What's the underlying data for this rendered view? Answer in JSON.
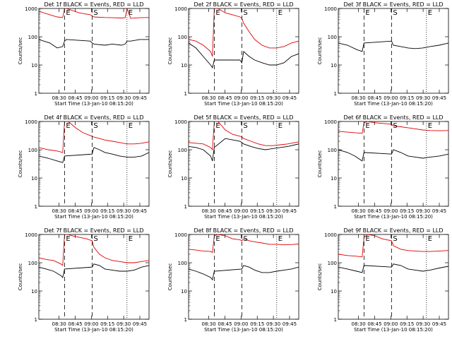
{
  "colors": {
    "events": "#000000",
    "lld": "#e00000",
    "axis": "#000000"
  },
  "chart_data": [
    {
      "type": "line",
      "title": "Det 1f BLACK = Events, RED = LLD",
      "xlabel": "Start Time (13-Jan-10 08:15:20)",
      "ylabel": "Counts/sec",
      "x_ticks": [
        "08:30",
        "08:45",
        "09:00",
        "09:15",
        "09:30",
        "09:45"
      ],
      "y_ticks": [
        "1",
        "10",
        "100",
        "1000"
      ],
      "y_scale": "log",
      "ylim": [
        1,
        1000
      ],
      "markers": [
        {
          "label": "E",
          "style": "dashed"
        },
        {
          "label": "S",
          "style": "dashed"
        },
        {
          "label": "E",
          "style": "dotted"
        }
      ],
      "series": [
        {
          "name": "Events",
          "color": "#000000",
          "x": [
            0,
            6,
            10,
            13,
            14,
            15,
            28,
            29,
            30,
            36,
            40,
            45,
            47,
            48,
            50,
            55,
            60
          ],
          "y": [
            80,
            60,
            40,
            45,
            70,
            80,
            70,
            60,
            55,
            50,
            55,
            50,
            55,
            70,
            70,
            80,
            80
          ]
        },
        {
          "name": "LLD",
          "color": "#e00000",
          "x": [
            0,
            6,
            10,
            13,
            14,
            15,
            22,
            28,
            29,
            30,
            36,
            40,
            45,
            47,
            48,
            50,
            55,
            60
          ],
          "y": [
            800,
            600,
            500,
            480,
            1000,
            1000,
            700,
            600,
            550,
            500,
            480,
            470,
            460,
            470,
            1000,
            450,
            470,
            480
          ]
        }
      ]
    },
    {
      "type": "line",
      "title": "Det 2f BLACK = Events, RED = LLD",
      "xlabel": "Start Time (13-Jan-10 08:15:20)",
      "ylabel": "Counts/sec",
      "x_ticks": [
        "08:30",
        "08:45",
        "09:00",
        "09:15",
        "09:30",
        "09:45"
      ],
      "y_ticks": [
        "1",
        "10",
        "100",
        "1000"
      ],
      "y_scale": "log",
      "ylim": [
        1,
        1000
      ],
      "markers": [
        {
          "label": "E",
          "style": "dashed"
        },
        {
          "label": "S",
          "style": "dashed"
        },
        {
          "label": "E",
          "style": "dotted"
        }
      ],
      "series": [
        {
          "name": "Events",
          "color": "#000000",
          "x": [
            0,
            4,
            8,
            12,
            13,
            14,
            28,
            29,
            30,
            33,
            36,
            40,
            44,
            48,
            52,
            56,
            60
          ],
          "y": [
            60,
            40,
            20,
            10,
            8,
            15,
            15,
            12,
            30,
            20,
            15,
            12,
            10,
            10,
            12,
            20,
            25
          ]
        },
        {
          "name": "LLD",
          "color": "#e00000",
          "x": [
            0,
            4,
            8,
            12,
            13,
            14,
            16,
            20,
            24,
            28,
            29,
            30,
            33,
            36,
            40,
            44,
            48,
            52,
            56,
            60
          ],
          "y": [
            80,
            70,
            50,
            30,
            20,
            1000,
            1000,
            700,
            600,
            500,
            450,
            300,
            150,
            80,
            50,
            40,
            40,
            45,
            60,
            70
          ]
        }
      ]
    },
    {
      "type": "line",
      "title": "Det 3f BLACK = Events, RED = LLD",
      "xlabel": "Start Time (13-Jan-10 08:15:20)",
      "ylabel": "Counts/sec",
      "x_ticks": [
        "08:30",
        "08:45",
        "09:00",
        "09:15",
        "09:30",
        "09:45"
      ],
      "y_ticks": [
        "1",
        "10",
        "100",
        "1000"
      ],
      "y_scale": "log",
      "ylim": [
        1,
        1000
      ],
      "markers": [
        {
          "label": "E",
          "style": "dashed"
        },
        {
          "label": "S",
          "style": "dashed"
        },
        {
          "label": "E",
          "style": "dotted"
        }
      ],
      "series": [
        {
          "name": "Events",
          "color": "#000000",
          "x": [
            0,
            5,
            10,
            13,
            14,
            29,
            30,
            34,
            38,
            42,
            46,
            50,
            55,
            60
          ],
          "y": [
            60,
            50,
            35,
            30,
            60,
            70,
            50,
            45,
            40,
            38,
            40,
            45,
            50,
            60
          ]
        },
        {
          "name": "LLD",
          "color": "#e00000",
          "x": [],
          "y": []
        }
      ]
    },
    {
      "type": "line",
      "title": "Det 4f BLACK = Events, RED = LLD",
      "xlabel": "Start Time (13-Jan-10 08:15:20)",
      "ylabel": "Counts/sec",
      "x_ticks": [
        "08:30",
        "08:45",
        "09:00",
        "09:15",
        "09:30",
        "09:45"
      ],
      "y_ticks": [
        "1",
        "10",
        "100",
        "1000"
      ],
      "y_scale": "log",
      "ylim": [
        1,
        1000
      ],
      "markers": [
        {
          "label": "E",
          "style": "dashed"
        },
        {
          "label": "S",
          "style": "dashed"
        },
        {
          "label": "E",
          "style": "dotted"
        }
      ],
      "series": [
        {
          "name": "Events",
          "color": "#000000",
          "x": [
            0,
            5,
            10,
            13,
            14,
            29,
            30,
            33,
            36,
            40,
            44,
            48,
            52,
            56,
            60
          ],
          "y": [
            60,
            50,
            40,
            35,
            60,
            70,
            120,
            100,
            80,
            70,
            60,
            55,
            55,
            60,
            80
          ]
        },
        {
          "name": "LLD",
          "color": "#e00000",
          "x": [
            0,
            5,
            10,
            13,
            14,
            16,
            20,
            24,
            29,
            30,
            33,
            36,
            40,
            44,
            48,
            52,
            56,
            60
          ],
          "y": [
            120,
            100,
            90,
            80,
            1000,
            1000,
            600,
            400,
            300,
            280,
            250,
            220,
            200,
            180,
            160,
            160,
            170,
            190
          ]
        }
      ]
    },
    {
      "type": "line",
      "title": "Det 5f BLACK = Events, RED = LLD",
      "xlabel": "Start Time (13-Jan-10 08:15:20)",
      "ylabel": "Counts/sec",
      "x_ticks": [
        "08:30",
        "08:45",
        "09:00",
        "09:15",
        "09:30",
        "09:45"
      ],
      "y_ticks": [
        "1",
        "10",
        "100",
        "1000"
      ],
      "y_scale": "log",
      "ylim": [
        1,
        1000
      ],
      "markers": [
        {
          "label": "E",
          "style": "dashed"
        },
        {
          "label": "S",
          "style": "dashed"
        },
        {
          "label": "E",
          "style": "dotted"
        }
      ],
      "series": [
        {
          "name": "Events",
          "color": "#000000",
          "x": [
            0,
            4,
            8,
            12,
            13,
            14,
            20,
            28,
            29,
            30,
            34,
            38,
            42,
            46,
            50,
            54,
            58,
            60
          ],
          "y": [
            130,
            120,
            100,
            60,
            40,
            120,
            250,
            200,
            180,
            160,
            130,
            110,
            100,
            110,
            120,
            130,
            150,
            160
          ]
        },
        {
          "name": "LLD",
          "color": "#e00000",
          "x": [
            0,
            4,
            8,
            12,
            13,
            14,
            16,
            20,
            24,
            28,
            29,
            30,
            34,
            38,
            42,
            46,
            50,
            54,
            58,
            60
          ],
          "y": [
            180,
            170,
            160,
            120,
            100,
            1000,
            1000,
            500,
            350,
            300,
            280,
            250,
            200,
            160,
            140,
            140,
            150,
            160,
            180,
            190
          ]
        }
      ]
    },
    {
      "type": "line",
      "title": "Det 6f BLACK = Events, RED = LLD",
      "xlabel": "Start Time (13-Jan-10 08:15:20)",
      "ylabel": "Counts/sec",
      "x_ticks": [
        "08:30",
        "08:45",
        "09:00",
        "09:15",
        "09:30",
        "09:45"
      ],
      "y_ticks": [
        "1",
        "10",
        "100",
        "1000"
      ],
      "y_scale": "log",
      "ylim": [
        1,
        1000
      ],
      "markers": [
        {
          "label": "E",
          "style": "dashed"
        },
        {
          "label": "S",
          "style": "dashed"
        },
        {
          "label": "E",
          "style": "dotted"
        }
      ],
      "series": [
        {
          "name": "Events",
          "color": "#000000",
          "x": [
            0,
            5,
            9,
            13,
            14,
            29,
            30,
            34,
            38,
            42,
            46,
            50,
            55,
            60
          ],
          "y": [
            100,
            80,
            60,
            40,
            80,
            70,
            100,
            80,
            60,
            55,
            50,
            55,
            60,
            70
          ]
        },
        {
          "name": "LLD",
          "color": "#e00000",
          "x": [
            0,
            5,
            9,
            13,
            14,
            16,
            20,
            29,
            30,
            34,
            38,
            42,
            46,
            50,
            55,
            60
          ],
          "y": [
            450,
            420,
            400,
            380,
            900,
            1000,
            900,
            800,
            700,
            650,
            600,
            550,
            500,
            480,
            470,
            480
          ]
        }
      ]
    },
    {
      "type": "line",
      "title": "Det 7f BLACK = Events, RED = LLD",
      "xlabel": "Start Time (13-Jan-10 08:15:20)",
      "ylabel": "Counts/sec",
      "x_ticks": [
        "08:30",
        "08:45",
        "09:00",
        "09:15",
        "09:30",
        "09:45"
      ],
      "y_ticks": [
        "1",
        "10",
        "100",
        "1000"
      ],
      "y_scale": "log",
      "ylim": [
        1,
        1000
      ],
      "markers": [
        {
          "label": "E",
          "style": "dashed"
        },
        {
          "label": "S",
          "style": "dashed"
        },
        {
          "label": "E",
          "style": "dotted"
        }
      ],
      "series": [
        {
          "name": "Events",
          "color": "#000000",
          "x": [
            0,
            4,
            8,
            12,
            13,
            14,
            29,
            30,
            33,
            36,
            40,
            44,
            48,
            52,
            56,
            60
          ],
          "y": [
            70,
            60,
            50,
            35,
            30,
            60,
            70,
            90,
            80,
            60,
            55,
            50,
            50,
            55,
            70,
            80
          ]
        },
        {
          "name": "LLD",
          "color": "#e00000",
          "x": [
            0,
            4,
            8,
            12,
            13,
            14,
            16,
            18,
            22,
            26,
            29,
            30,
            33,
            36,
            40,
            44,
            48,
            52,
            56,
            60
          ],
          "y": [
            150,
            130,
            120,
            90,
            80,
            1000,
            1000,
            900,
            800,
            700,
            600,
            350,
            200,
            150,
            120,
            110,
            100,
            100,
            110,
            120
          ]
        }
      ]
    },
    {
      "type": "line",
      "title": "Det 8f BLACK = Events, RED = LLD",
      "xlabel": "Start Time (13-Jan-10 08:15:20)",
      "ylabel": "Counts/sec",
      "x_ticks": [
        "08:30",
        "08:45",
        "09:00",
        "09:15",
        "09:30",
        "09:45"
      ],
      "y_ticks": [
        "1",
        "10",
        "100",
        "1000"
      ],
      "y_scale": "log",
      "ylim": [
        1,
        1000
      ],
      "markers": [
        {
          "label": "E",
          "style": "dashed"
        },
        {
          "label": "S",
          "style": "dashed"
        },
        {
          "label": "E",
          "style": "dotted"
        }
      ],
      "series": [
        {
          "name": "Events",
          "color": "#000000",
          "x": [
            0,
            4,
            8,
            12,
            13,
            14,
            29,
            30,
            33,
            36,
            40,
            44,
            48,
            52,
            56,
            60
          ],
          "y": [
            60,
            50,
            40,
            30,
            25,
            50,
            60,
            80,
            70,
            55,
            45,
            45,
            50,
            55,
            60,
            70
          ]
        },
        {
          "name": "LLD",
          "color": "#e00000",
          "x": [
            0,
            4,
            8,
            12,
            13,
            14,
            16,
            20,
            24,
            28,
            29,
            30,
            33,
            36,
            40,
            44,
            48,
            52,
            56,
            60
          ],
          "y": [
            300,
            280,
            260,
            250,
            230,
            900,
            1000,
            900,
            700,
            650,
            600,
            700,
            600,
            550,
            500,
            450,
            450,
            430,
            440,
            460
          ]
        }
      ]
    },
    {
      "type": "line",
      "title": "Det 9f BLACK = Events, RED = LLD",
      "xlabel": "Start Time (13-Jan-10 08:15:20)",
      "ylabel": "Counts/sec",
      "x_ticks": [
        "08:30",
        "08:45",
        "09:00",
        "09:15",
        "09:30",
        "09:45"
      ],
      "y_ticks": [
        "1",
        "10",
        "100",
        "1000"
      ],
      "y_scale": "log",
      "ylim": [
        1,
        1000
      ],
      "markers": [
        {
          "label": "E",
          "style": "dashed"
        },
        {
          "label": "S",
          "style": "dashed"
        },
        {
          "label": "E",
          "style": "dotted"
        }
      ],
      "series": [
        {
          "name": "Events",
          "color": "#000000",
          "x": [
            0,
            5,
            10,
            13,
            14,
            29,
            30,
            34,
            38,
            42,
            46,
            50,
            55,
            60
          ],
          "y": [
            70,
            60,
            50,
            45,
            80,
            70,
            90,
            80,
            60,
            55,
            50,
            55,
            65,
            75
          ]
        },
        {
          "name": "LLD",
          "color": "#e00000",
          "x": [
            0,
            5,
            10,
            13,
            14,
            16,
            20,
            24,
            29,
            30,
            34,
            38,
            42,
            46,
            50,
            55,
            60
          ],
          "y": [
            200,
            180,
            170,
            160,
            800,
            1000,
            900,
            700,
            600,
            400,
            300,
            270,
            260,
            250,
            250,
            260,
            270
          ]
        }
      ]
    }
  ]
}
